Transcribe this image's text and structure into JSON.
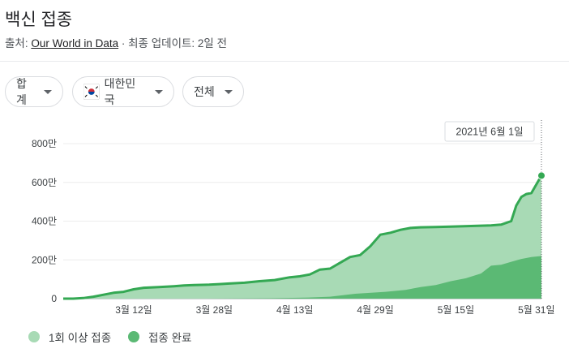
{
  "header": {
    "title": "백신 접종",
    "source_prefix": "출처: ",
    "source_link": "Our World in Data",
    "updated": " · 최종 업데이트: 2일 전"
  },
  "filters": [
    {
      "label": "합계"
    },
    {
      "label": "대한민국",
      "icon": "south-korea-flag-icon"
    },
    {
      "label": "전체"
    }
  ],
  "colors": {
    "first_dose": "#a8dab5",
    "fully": "#5bb974",
    "line": "#34a853"
  },
  "chart_data": {
    "type": "area",
    "tooltip": "2021년 6월 1일",
    "ylim": [
      0,
      8000000
    ],
    "y_ticks": [
      0,
      2000000,
      4000000,
      6000000,
      8000000
    ],
    "y_tick_labels": [
      "0",
      "200만",
      "400만",
      "600만",
      "800만"
    ],
    "x_ticks": [
      "2021-03-12",
      "2021-03-28",
      "2021-04-13",
      "2021-04-29",
      "2021-05-15",
      "2021-05-31"
    ],
    "x_tick_labels": [
      "3월 12일",
      "3월 28일",
      "4월 13일",
      "4월 29일",
      "5월 15일",
      "5월 31일"
    ],
    "xlim": [
      "2021-02-26",
      "2021-06-01"
    ],
    "series": [
      {
        "name": "1회 이상 접종",
        "points": [
          [
            "2021-02-26",
            0
          ],
          [
            "2021-02-28",
            0
          ],
          [
            "2021-03-02",
            30000
          ],
          [
            "2021-03-04",
            100000
          ],
          [
            "2021-03-06",
            200000
          ],
          [
            "2021-03-08",
            300000
          ],
          [
            "2021-03-10",
            350000
          ],
          [
            "2021-03-12",
            480000
          ],
          [
            "2021-03-14",
            560000
          ],
          [
            "2021-03-17",
            600000
          ],
          [
            "2021-03-20",
            640000
          ],
          [
            "2021-03-22",
            680000
          ],
          [
            "2021-03-24",
            700000
          ],
          [
            "2021-03-27",
            720000
          ],
          [
            "2021-03-29",
            750000
          ],
          [
            "2021-03-31",
            780000
          ],
          [
            "2021-04-03",
            820000
          ],
          [
            "2021-04-06",
            900000
          ],
          [
            "2021-04-09",
            960000
          ],
          [
            "2021-04-12",
            1100000
          ],
          [
            "2021-04-14",
            1150000
          ],
          [
            "2021-04-16",
            1250000
          ],
          [
            "2021-04-18",
            1500000
          ],
          [
            "2021-04-20",
            1550000
          ],
          [
            "2021-04-22",
            1850000
          ],
          [
            "2021-04-24",
            2150000
          ],
          [
            "2021-04-26",
            2250000
          ],
          [
            "2021-04-28",
            2700000
          ],
          [
            "2021-04-30",
            3300000
          ],
          [
            "2021-05-02",
            3400000
          ],
          [
            "2021-05-04",
            3550000
          ],
          [
            "2021-05-06",
            3650000
          ],
          [
            "2021-05-08",
            3680000
          ],
          [
            "2021-05-11",
            3700000
          ],
          [
            "2021-05-14",
            3720000
          ],
          [
            "2021-05-18",
            3750000
          ],
          [
            "2021-05-22",
            3780000
          ],
          [
            "2021-05-24",
            3820000
          ],
          [
            "2021-05-26",
            4000000
          ],
          [
            "2021-05-27",
            4800000
          ],
          [
            "2021-05-28",
            5250000
          ],
          [
            "2021-05-29",
            5400000
          ],
          [
            "2021-05-30",
            5450000
          ],
          [
            "2021-05-31",
            5900000
          ],
          [
            "2021-06-01",
            6350000
          ]
        ]
      },
      {
        "name": "접종 완료",
        "points": [
          [
            "2021-02-26",
            0
          ],
          [
            "2021-03-25",
            0
          ],
          [
            "2021-04-08",
            20000
          ],
          [
            "2021-04-15",
            50000
          ],
          [
            "2021-04-20",
            100000
          ],
          [
            "2021-04-25",
            250000
          ],
          [
            "2021-05-01",
            350000
          ],
          [
            "2021-05-05",
            450000
          ],
          [
            "2021-05-08",
            600000
          ],
          [
            "2021-05-11",
            700000
          ],
          [
            "2021-05-14",
            900000
          ],
          [
            "2021-05-17",
            1050000
          ],
          [
            "2021-05-20",
            1300000
          ],
          [
            "2021-05-22",
            1700000
          ],
          [
            "2021-05-24",
            1750000
          ],
          [
            "2021-05-26",
            1900000
          ],
          [
            "2021-05-28",
            2050000
          ],
          [
            "2021-05-30",
            2150000
          ],
          [
            "2021-06-01",
            2200000
          ]
        ]
      }
    ]
  }
}
